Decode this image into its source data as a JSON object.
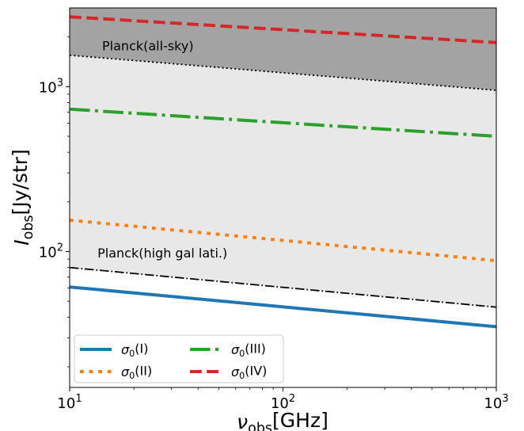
{
  "chart_data": {
    "type": "line",
    "xlabel": {
      "main": "ν",
      "sub": "obs",
      "rest": "[GHz]"
    },
    "ylabel": {
      "main": "I",
      "sub": "obs",
      "rest": "[Jy/str]"
    },
    "xscale": "log",
    "yscale": "log",
    "xlim": [
      10,
      1000
    ],
    "ylim": [
      15,
      3000
    ],
    "grid": false,
    "x_ticks": [
      {
        "value": 10,
        "base": "10",
        "exp": "1"
      },
      {
        "value": 100,
        "base": "10",
        "exp": "2"
      },
      {
        "value": 1000,
        "base": "10",
        "exp": "3"
      }
    ],
    "y_ticks": [
      {
        "value": 100,
        "base": "10",
        "exp": "2"
      },
      {
        "value": 1000,
        "base": "10",
        "exp": "3"
      }
    ],
    "series": [
      {
        "name": "σ0(I)",
        "label_main": "σ",
        "label_sub": "0",
        "label_rest": "(I)",
        "style": "solid",
        "color": "#1f77b4",
        "x": [
          10,
          1000
        ],
        "y": [
          61,
          35
        ]
      },
      {
        "name": "σ0(II)",
        "label_main": "σ",
        "label_sub": "0",
        "label_rest": "(II)",
        "style": "dotted",
        "color": "#ff7f0e",
        "x": [
          10,
          1000
        ],
        "y": [
          155,
          88
        ]
      },
      {
        "name": "σ0(III)",
        "label_main": "σ",
        "label_sub": "0",
        "label_rest": "(III)",
        "style": "dashdot",
        "color": "#2ca02c",
        "x": [
          10,
          1000
        ],
        "y": [
          730,
          500
        ]
      },
      {
        "name": "σ0(IV)",
        "label_main": "σ",
        "label_sub": "0",
        "label_rest": "(IV)",
        "style": "dashed",
        "color": "#d62728",
        "x": [
          10,
          1000
        ],
        "y": [
          2650,
          1850
        ]
      }
    ],
    "regions": [
      {
        "label": "Planck(all-sky)",
        "boundary": "dotted",
        "fill": "#a3a3a3",
        "x": [
          10,
          1000
        ],
        "y": [
          1550,
          950
        ],
        "label_at": [
          14.2,
          1550
        ]
      },
      {
        "label": "Planck(high gal lati.)",
        "boundary": "dashdot",
        "fill": "#e8e8e8",
        "x": [
          10,
          1000
        ],
        "y": [
          80,
          46
        ],
        "label_at": [
          13.5,
          86
        ]
      }
    ],
    "legend_position": "lower-left",
    "legend_columns": 2
  }
}
